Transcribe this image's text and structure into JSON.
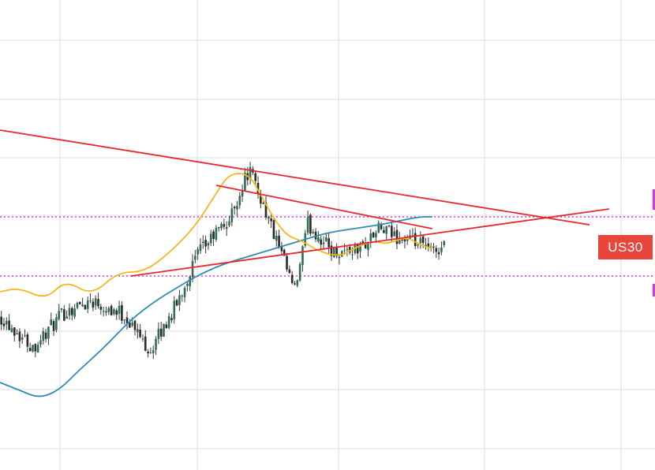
{
  "symbol": "US30",
  "colors": {
    "grid": "#e3e3e3",
    "trendline": "#e8272d",
    "level": "#d633e8",
    "ma_fast": "#f2b91c",
    "ma_slow": "#2e8db3",
    "bull_candle": "#2f6f4f",
    "bear_candle": "#2a2a2a",
    "wick": "#3a3a3a",
    "tag_bg": "#e8463a"
  },
  "chart_data": {
    "type": "candlestick",
    "title": "",
    "xlabel": "",
    "ylabel": "",
    "grid": true,
    "x_range": [
      0,
      100
    ],
    "y_range": [
      0,
      100
    ],
    "candles": {
      "count": 170,
      "start": [
        0,
        32
      ],
      "anchors": [
        [
          0,
          32
        ],
        [
          5,
          24
        ],
        [
          10,
          33
        ],
        [
          14,
          36
        ],
        [
          19,
          32
        ],
        [
          23,
          23
        ],
        [
          27,
          35
        ],
        [
          30,
          47
        ],
        [
          33,
          53
        ],
        [
          35,
          56
        ],
        [
          37,
          65
        ],
        [
          38,
          69
        ],
        [
          40,
          61
        ],
        [
          43,
          47
        ],
        [
          45,
          38
        ],
        [
          47,
          55
        ],
        [
          51,
          48
        ],
        [
          55,
          49
        ],
        [
          58,
          54
        ],
        [
          59,
          53
        ],
        [
          62,
          51
        ],
        [
          64,
          50
        ],
        [
          66,
          48
        ],
        [
          68,
          50
        ]
      ]
    },
    "ma_fast": [
      [
        0,
        38
      ],
      [
        3,
        39
      ],
      [
        7,
        36
      ],
      [
        10,
        41
      ],
      [
        14,
        37
      ],
      [
        18,
        43
      ],
      [
        22,
        43
      ],
      [
        26,
        48
      ],
      [
        30,
        55
      ],
      [
        33,
        63
      ],
      [
        35,
        68
      ],
      [
        38,
        68
      ],
      [
        40,
        62
      ],
      [
        42,
        56
      ],
      [
        44,
        52
      ],
      [
        46,
        51
      ],
      [
        49,
        48
      ],
      [
        52,
        47
      ],
      [
        54,
        49
      ],
      [
        57,
        51
      ],
      [
        59,
        50
      ],
      [
        62,
        52
      ],
      [
        64,
        50
      ],
      [
        66,
        49
      ]
    ],
    "ma_slow": [
      [
        0,
        15
      ],
      [
        3,
        13
      ],
      [
        6,
        11
      ],
      [
        9,
        13
      ],
      [
        12,
        18
      ],
      [
        16,
        24
      ],
      [
        20,
        31
      ],
      [
        24,
        36
      ],
      [
        27,
        39
      ],
      [
        30,
        42
      ],
      [
        34,
        45
      ],
      [
        38,
        47
      ],
      [
        42,
        49
      ],
      [
        46,
        51
      ],
      [
        50,
        53
      ],
      [
        54,
        54
      ],
      [
        58,
        55
      ],
      [
        61,
        56
      ],
      [
        64,
        57
      ],
      [
        66,
        57
      ]
    ],
    "trendlines": [
      {
        "name": "outer-upper-resistance",
        "points": [
          [
            0,
            79
          ],
          [
            90,
            55
          ]
        ]
      },
      {
        "name": "inner-upper-resistance",
        "points": [
          [
            33,
            65
          ],
          [
            66,
            54
          ]
        ]
      },
      {
        "name": "lower-support",
        "points": [
          [
            20,
            42
          ],
          [
            93,
            59
          ]
        ]
      }
    ],
    "horizontal_levels": [
      {
        "name": "upper-level",
        "y": 57
      },
      {
        "name": "lower-level",
        "y": 42
      }
    ]
  }
}
